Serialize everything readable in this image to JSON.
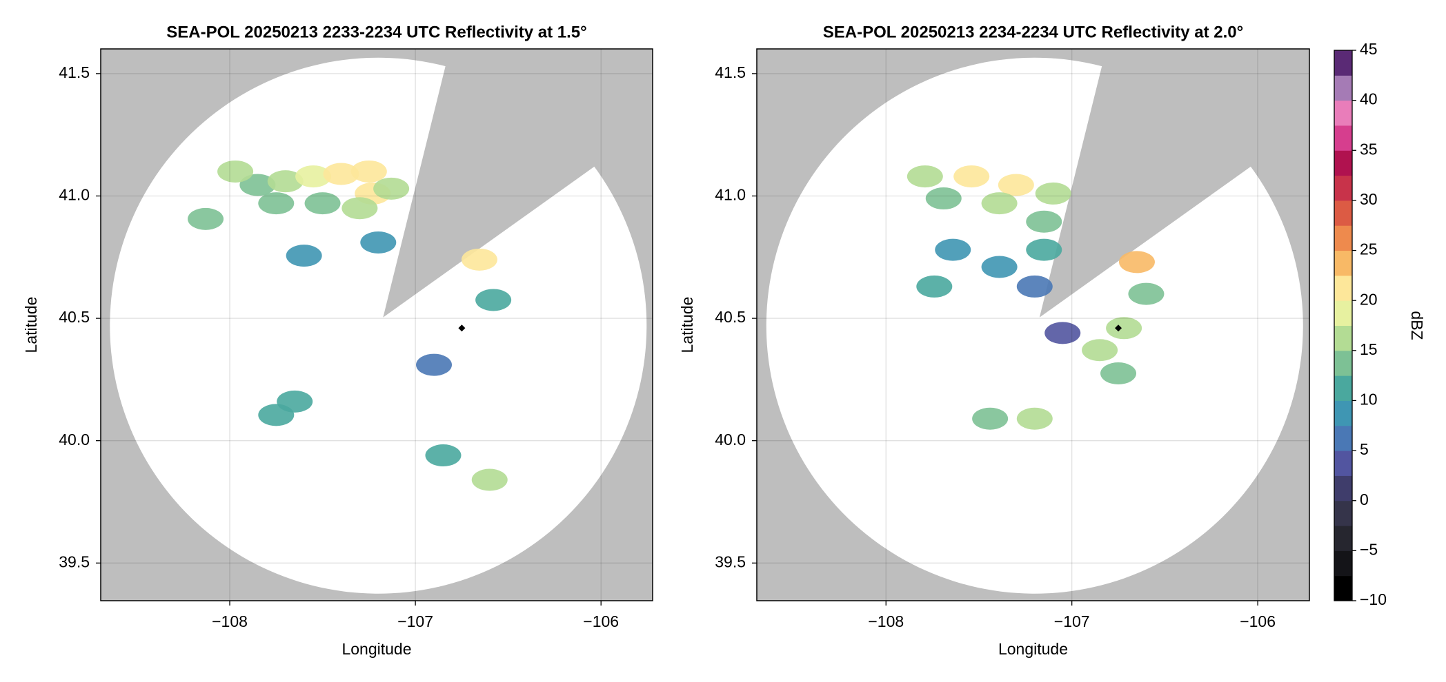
{
  "chart_data": [
    {
      "type": "radar",
      "title": "SEA-POL 20250213 2233-2234 UTC Reflectivity at 1.5°",
      "x_label": "Longitude",
      "y_label": "Latitude",
      "xlim": [
        -108.695,
        -105.722
      ],
      "ylim": [
        39.346,
        41.601
      ],
      "xticks": [
        {
          "value": -108,
          "label": "−108"
        },
        {
          "value": -107,
          "label": "−107"
        },
        {
          "value": -106,
          "label": "−106"
        }
      ],
      "yticks": [
        39.5,
        {
          "value": 40,
          "label": "40.0"
        },
        40.5,
        {
          "value": 41,
          "label": "41.0"
        },
        41.5
      ],
      "grid": true,
      "site": {
        "x": -106.75,
        "y": 40.46
      },
      "echoes": {
        "x": [
          -107.85,
          -107.7,
          -107.55,
          -107.4,
          -107.25,
          -107.23,
          -107.13,
          -107.75,
          -107.5,
          -107.3,
          -107.6,
          -107.2,
          -106.655,
          -106.58,
          -106.9,
          -107.75,
          -107.65,
          -106.85,
          -106.6,
          -108.13,
          -107.97
        ],
        "y": [
          41.045,
          41.06,
          41.08,
          41.09,
          41.1,
          41.01,
          41.03,
          40.97,
          40.97,
          40.95,
          40.756,
          40.81,
          40.74,
          40.575,
          40.31,
          40.105,
          40.16,
          39.94,
          39.84,
          40.906,
          41.1
        ],
        "values": [
          14,
          17,
          18,
          21,
          22,
          20,
          17,
          13,
          14,
          15,
          8,
          9,
          22,
          11,
          7,
          12,
          11,
          11,
          15,
          14,
          16
        ]
      }
    },
    {
      "type": "radar",
      "title": "SEA-POL 20250213 2234-2234 UTC Reflectivity at 2.0°",
      "x_label": "Longitude",
      "y_label": "Latitude",
      "xlim": [
        -108.695,
        -105.722
      ],
      "ylim": [
        39.346,
        41.601
      ],
      "xticks": [
        {
          "value": -108,
          "label": "−108"
        },
        {
          "value": -107,
          "label": "−107"
        },
        {
          "value": -106,
          "label": "−106"
        }
      ],
      "yticks": [
        39.5,
        {
          "value": 40,
          "label": "40.0"
        },
        40.5,
        {
          "value": 41,
          "label": "41.0"
        },
        41.5
      ],
      "grid": true,
      "site": {
        "x": -106.75,
        "y": 40.46
      },
      "echoes": {
        "x": [
          -107.79,
          -107.54,
          -107.3,
          -107.1,
          -107.69,
          -107.39,
          -107.15,
          -107.15,
          -107.39,
          -106.65,
          -106.6,
          -106.72,
          -106.85,
          -106.75,
          -107.05,
          -107.2,
          -107.44,
          -107.2,
          -107.74,
          -107.64
        ],
        "y": [
          41.08,
          41.08,
          41.045,
          41.01,
          40.99,
          40.97,
          40.895,
          40.78,
          40.71,
          40.73,
          40.6,
          40.46,
          40.37,
          40.275,
          40.44,
          40.63,
          40.09,
          40.09,
          40.63,
          40.78
        ],
        "values": [
          16,
          22,
          20,
          17,
          14,
          16,
          14,
          12,
          9,
          23,
          14,
          17,
          15,
          13,
          4,
          5,
          14,
          16,
          10,
          9
        ]
      }
    },
    {
      "type": "colorbar",
      "label": "dBZ",
      "ylim": [
        -10,
        45
      ],
      "yticks": [
        {
          "value": -10,
          "label": "−10"
        },
        {
          "value": -5,
          "label": "−5"
        },
        0,
        5,
        10,
        15,
        20,
        25,
        30,
        35,
        40,
        45
      ],
      "colors": [
        "#000000",
        "#141418",
        "#26262f",
        "#35344a",
        "#3f3d6b",
        "#5255a0",
        "#4a78b5",
        "#3f96b3",
        "#4aa89e",
        "#7dc195",
        "#b3dc94",
        "#e7f1a0",
        "#fde79a",
        "#f8b966",
        "#ee8a4d",
        "#dc5b44",
        "#c8334a",
        "#b0124f",
        "#d63e8e",
        "#e97dba",
        "#a57bb5",
        "#5a2a75"
      ]
    }
  ]
}
